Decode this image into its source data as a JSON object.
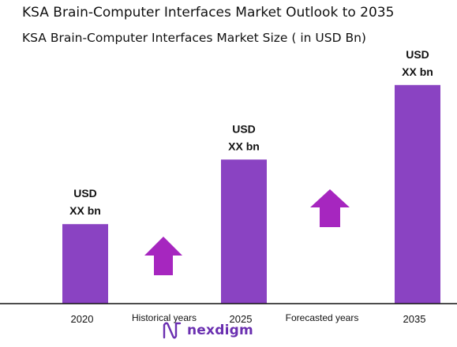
{
  "header": {
    "title": "KSA Brain-Computer Interfaces Market Outlook to 2035",
    "subtitle": "KSA Brain-Computer Interfaces Market Size  ( in USD Bn)"
  },
  "chart_data": {
    "type": "bar",
    "title": "KSA Brain-Computer Interfaces Market Size  ( in USD Bn)",
    "categories": [
      "2020",
      "2025",
      "2035"
    ],
    "series": [
      {
        "values": [
          0.32,
          0.58,
          0.88
        ]
      }
    ],
    "data_labels": [
      [
        "USD",
        "XX bn"
      ],
      [
        "USD",
        "XX bn"
      ],
      [
        "USD",
        "XX bn"
      ]
    ],
    "ylim": [
      0,
      1
    ],
    "grid": false,
    "bar_color": "#8a43c2",
    "arrow_color": "#a626bf",
    "period_labels": [
      "Historical years",
      "Forecasted years"
    ]
  },
  "logo": {
    "text": "nexdigm",
    "icon": "nexdigm-logo-icon",
    "color": "#6a2fb0"
  }
}
